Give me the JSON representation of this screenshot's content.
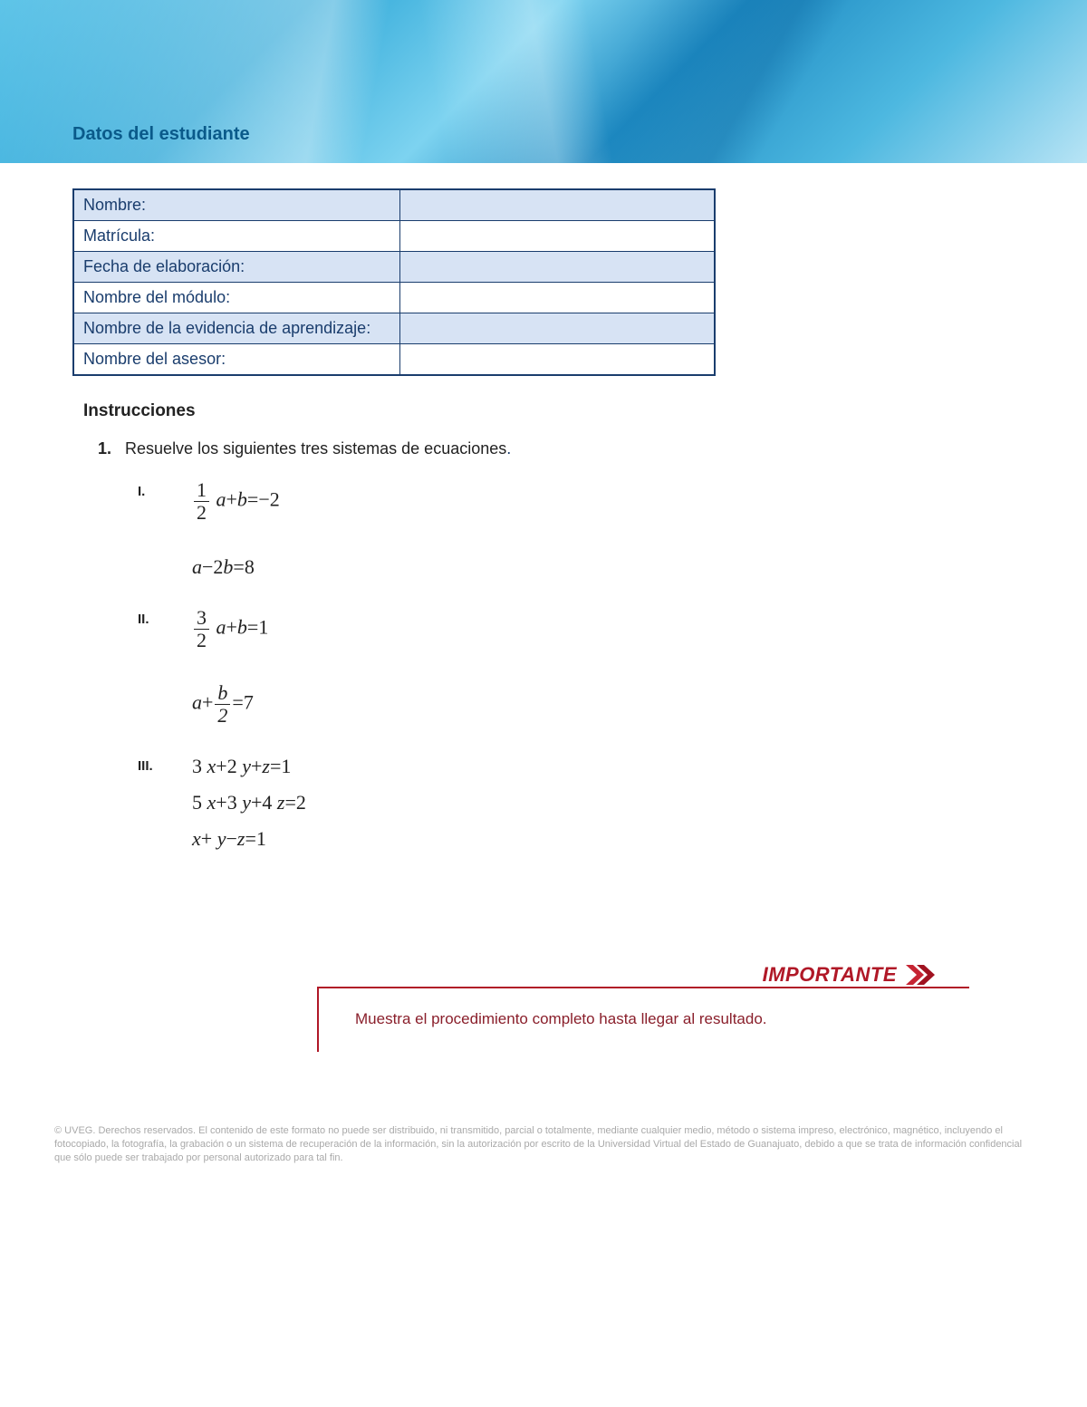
{
  "banner": {
    "title": "Datos del estudiante"
  },
  "studentTable": {
    "rows": [
      {
        "label": "Nombre:",
        "value": "",
        "shaded": true
      },
      {
        "label": "Matrícula:",
        "value": "",
        "shaded": false
      },
      {
        "label": "Fecha de elaboración:",
        "value": "",
        "shaded": true
      },
      {
        "label": "Nombre del módulo:",
        "value": "",
        "shaded": false
      },
      {
        "label": "Nombre de la evidencia de aprendizaje:",
        "value": "",
        "shaded": true
      },
      {
        "label": "Nombre del asesor:",
        "value": "",
        "shaded": false
      }
    ],
    "border_color": "#1a3d6d",
    "shade_color": "#d7e3f4",
    "text_color": "#1a3d6d"
  },
  "instructions": {
    "heading": "Instrucciones",
    "item_number": "1.",
    "item_text": "Resuelve los siguientes tres sistemas de ecuaciones",
    "period": "."
  },
  "problems": [
    {
      "roman": "I.",
      "equations": [
        {
          "parts": [
            {
              "frac": {
                "n": "1",
                "d": "2"
              }
            },
            {
              "txt": " a"
            },
            {
              "op": "+"
            },
            {
              "txt": "b"
            },
            {
              "op": "="
            },
            {
              "op": "−"
            },
            {
              "num": "2"
            }
          ]
        },
        {
          "parts": [
            {
              "txt": "a"
            },
            {
              "op": "−"
            },
            {
              "num": "2"
            },
            {
              "txt": "b"
            },
            {
              "op": "="
            },
            {
              "num": "8"
            }
          ]
        }
      ]
    },
    {
      "roman": "II.",
      "equations": [
        {
          "parts": [
            {
              "frac": {
                "n": "3",
                "d": "2"
              }
            },
            {
              "txt": " a"
            },
            {
              "op": "+"
            },
            {
              "txt": "b"
            },
            {
              "op": "="
            },
            {
              "num": "1"
            }
          ]
        },
        {
          "parts": [
            {
              "txt": "a"
            },
            {
              "op": "+"
            },
            {
              "fracit": {
                "n": "b",
                "d": "2"
              }
            },
            {
              "op": "="
            },
            {
              "num": "7"
            }
          ]
        }
      ]
    },
    {
      "roman": "III.",
      "tight": true,
      "equations": [
        {
          "parts": [
            {
              "num": "3"
            },
            {
              "txt": " x"
            },
            {
              "op": "+"
            },
            {
              "num": "2"
            },
            {
              "txt": " y"
            },
            {
              "op": "+"
            },
            {
              "txt": "z"
            },
            {
              "op": "="
            },
            {
              "num": "1"
            }
          ]
        },
        {
          "parts": [
            {
              "num": "5"
            },
            {
              "txt": " x"
            },
            {
              "op": "+"
            },
            {
              "num": "3"
            },
            {
              "txt": " y"
            },
            {
              "op": "+"
            },
            {
              "num": "4"
            },
            {
              "txt": " z"
            },
            {
              "op": "="
            },
            {
              "num": "2"
            }
          ]
        },
        {
          "parts": [
            {
              "txt": "x"
            },
            {
              "op": "+"
            },
            {
              "txt": " y"
            },
            {
              "op": "−"
            },
            {
              "txt": "z"
            },
            {
              "op": "="
            },
            {
              "num": "1"
            }
          ]
        }
      ]
    }
  ],
  "callout": {
    "label": "IMPORTANTE",
    "text": "Muestra el procedimiento completo hasta llegar al resultado.",
    "color": "#b01827"
  },
  "footer": {
    "text": "© UVEG. Derechos reservados. El contenido de este formato no puede ser  distribuido, ni transmitido, parcial o totalmente, mediante cualquier medio, método o sistema impreso, electrónico, magnético, incluyendo el fotocopiado, la fotografía, la grabación o un sistema de recuperación de la información, sin la autorización por escrito de la Universidad Virtual del Estado de Guanajuato, debido a que se trata de información confidencial que sólo puede ser trabajado por personal autorizado para tal fin."
  }
}
